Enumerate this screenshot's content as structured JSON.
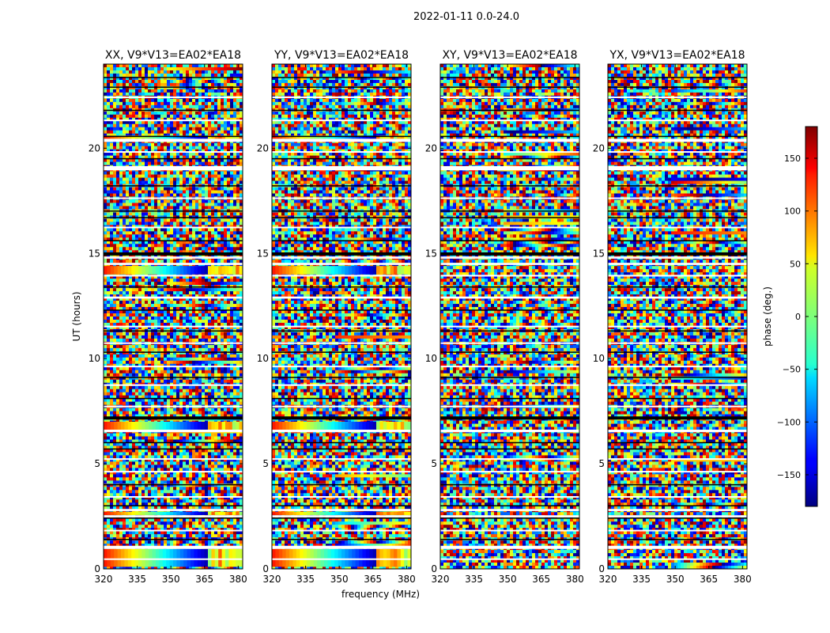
{
  "title": "2022-01-11 0.0-24.0",
  "xlabel": "frequency (MHz)",
  "ylabel": "UT (hours)",
  "colorbar": {
    "label": "phase (deg.)",
    "ticks": [
      150,
      100,
      50,
      0,
      -50,
      -100,
      -150
    ],
    "tick_labels": [
      "150",
      "100",
      "50",
      "0",
      "−50",
      "−100",
      "−150"
    ],
    "range": [
      -180,
      180
    ],
    "colormap": "jet"
  },
  "chart_data": [
    {
      "type": "heatmap",
      "title": "XX, V9*V13=EA02*EA18",
      "x_ticks": [
        320,
        335,
        350,
        365,
        380
      ],
      "x_tick_labels": [
        "320",
        "335",
        "350",
        "365",
        "380"
      ],
      "xlim": [
        320,
        382
      ],
      "y_ticks": [
        0,
        5,
        10,
        15,
        20
      ],
      "y_tick_labels": [
        "0",
        "5",
        "10",
        "15",
        "20"
      ],
      "ylim": [
        0,
        24
      ],
      "z": "phase (deg.)"
    },
    {
      "type": "heatmap",
      "title": "YY, V9*V13=EA02*EA18",
      "x_ticks": [
        320,
        335,
        350,
        365,
        380
      ],
      "x_tick_labels": [
        "320",
        "335",
        "350",
        "365",
        "380"
      ],
      "xlim": [
        320,
        382
      ],
      "y_ticks": [
        0,
        5,
        10,
        15,
        20
      ],
      "y_tick_labels": [
        "0",
        "5",
        "10",
        "15",
        "20"
      ],
      "ylim": [
        0,
        24
      ],
      "z": "phase (deg.)"
    },
    {
      "type": "heatmap",
      "title": "XY, V9*V13=EA02*EA18",
      "x_ticks": [
        320,
        335,
        350,
        365,
        380
      ],
      "x_tick_labels": [
        "320",
        "335",
        "350",
        "365",
        "380"
      ],
      "xlim": [
        320,
        382
      ],
      "y_ticks": [
        0,
        5,
        10,
        15,
        20
      ],
      "y_tick_labels": [
        "0",
        "5",
        "10",
        "15",
        "20"
      ],
      "ylim": [
        0,
        24
      ],
      "z": "phase (deg.)"
    },
    {
      "type": "heatmap",
      "title": "YX, V9*V13=EA02*EA18",
      "x_ticks": [
        320,
        335,
        350,
        365,
        380
      ],
      "x_tick_labels": [
        "320",
        "335",
        "350",
        "365",
        "380"
      ],
      "xlim": [
        320,
        382
      ],
      "y_ticks": [
        0,
        5,
        10,
        15,
        20
      ],
      "y_tick_labels": [
        "0",
        "5",
        "10",
        "15",
        "20"
      ],
      "ylim": [
        0,
        24
      ],
      "z": "phase (deg.)"
    }
  ]
}
